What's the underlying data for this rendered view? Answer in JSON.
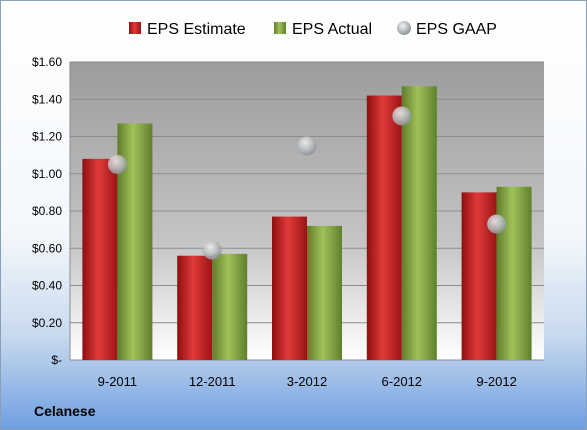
{
  "company": "Celanese",
  "chart_data": {
    "type": "bar",
    "categories": [
      "9-2011",
      "12-2011",
      "3-2012",
      "6-2012",
      "9-2012"
    ],
    "series": [
      {
        "name": "EPS Estimate",
        "type": "bar",
        "color": "#cc2222",
        "values": [
          1.08,
          0.56,
          0.77,
          1.42,
          0.9
        ]
      },
      {
        "name": "EPS Actual",
        "type": "bar",
        "color": "#8cad4a",
        "values": [
          1.27,
          0.57,
          0.72,
          1.47,
          0.93
        ]
      },
      {
        "name": "EPS GAAP",
        "type": "scatter",
        "color": "#b0b4b8",
        "values": [
          1.05,
          0.59,
          1.15,
          1.31,
          0.73
        ]
      }
    ],
    "ylim": [
      0,
      1.6
    ],
    "yticks": [
      0,
      0.2,
      0.4,
      0.6,
      0.8,
      1.0,
      1.2,
      1.4,
      1.6
    ],
    "ytick_labels": [
      "$-",
      "$0.20",
      "$0.40",
      "$0.60",
      "$0.80",
      "$1.00",
      "$1.20",
      "$1.40",
      "$1.60"
    ],
    "grid": true,
    "legend_position": "top"
  }
}
